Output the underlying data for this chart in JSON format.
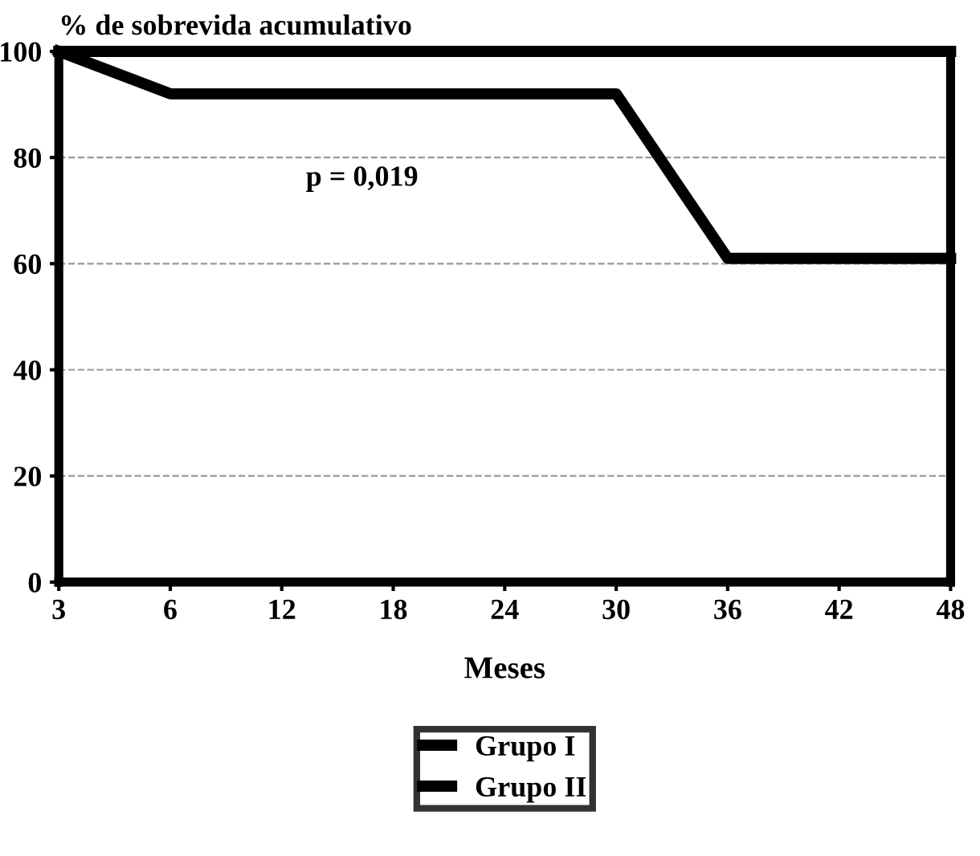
{
  "chart_data": {
    "type": "line",
    "ylabel": "% de sobrevida acumulativo",
    "xlabel": "Meses",
    "categories": [
      "3",
      "6",
      "12",
      "18",
      "24",
      "30",
      "36",
      "42",
      "48"
    ],
    "series": [
      {
        "name": "Grupo I",
        "color": "#000000",
        "values": [
          100,
          100,
          100,
          100,
          100,
          100,
          100,
          100,
          100
        ]
      },
      {
        "name": "Grupo II",
        "color": "#000000",
        "values": [
          100,
          92,
          92,
          92,
          92,
          92,
          61,
          61,
          61
        ]
      }
    ],
    "ylim": [
      0,
      100
    ],
    "yticks": [
      0,
      20,
      40,
      60,
      80,
      100
    ],
    "grid": "y",
    "legend": "bottom",
    "marker": "none",
    "line_style": "solid",
    "annotations": [
      "p = 0,019"
    ]
  }
}
